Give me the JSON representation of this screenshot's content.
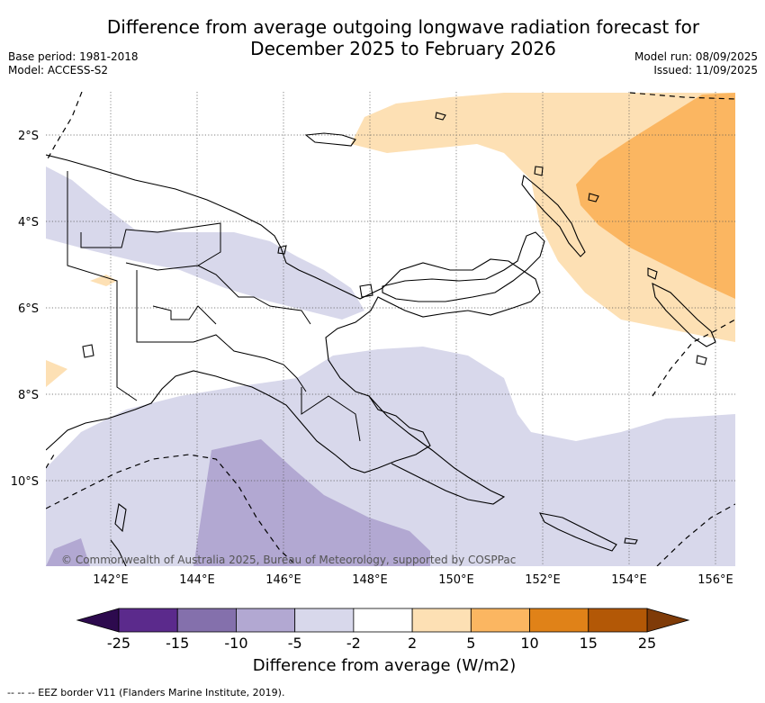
{
  "title": {
    "line1": "Difference from average outgoing longwave radiation forecast for",
    "line2": "December 2025 to February 2026"
  },
  "meta": {
    "base_period": "Base period: 1981-2018",
    "model": "Model: ACCESS-S2",
    "model_run": "Model run: 08/09/2025",
    "issued": "Issued: 11/09/2025"
  },
  "map": {
    "region": "Papua New Guinea",
    "lon_range": [
      140.5,
      156.5
    ],
    "lat_range": [
      -12,
      -1
    ],
    "lat_ticks": [
      "2°S",
      "4°S",
      "6°S",
      "8°S",
      "10°S"
    ],
    "lon_ticks": [
      "142°E",
      "144°E",
      "146°E",
      "148°E",
      "150°E",
      "152°E",
      "154°E",
      "156°E"
    ],
    "copyright": "© Commonwealth of Australia 2025, Bureau of Meteorology, supported by COSPPac"
  },
  "colorbar": {
    "labels": [
      "-25",
      "-15",
      "-10",
      "-5",
      "-2",
      "2",
      "5",
      "10",
      "15",
      "25"
    ],
    "colors": [
      "#5b2a8c",
      "#8470ac",
      "#b2a8d2",
      "#d8d8eb",
      "#ffffff",
      "#fde0b4",
      "#fbb661",
      "#e08218",
      "#b35806"
    ],
    "under_color": "#2d0a4e",
    "over_color": "#7f3b08",
    "title": "Difference from average (W/m2)"
  },
  "footnote": "--  --  -- EEZ border V11 (Flanders Marine Institute, 2019)."
}
